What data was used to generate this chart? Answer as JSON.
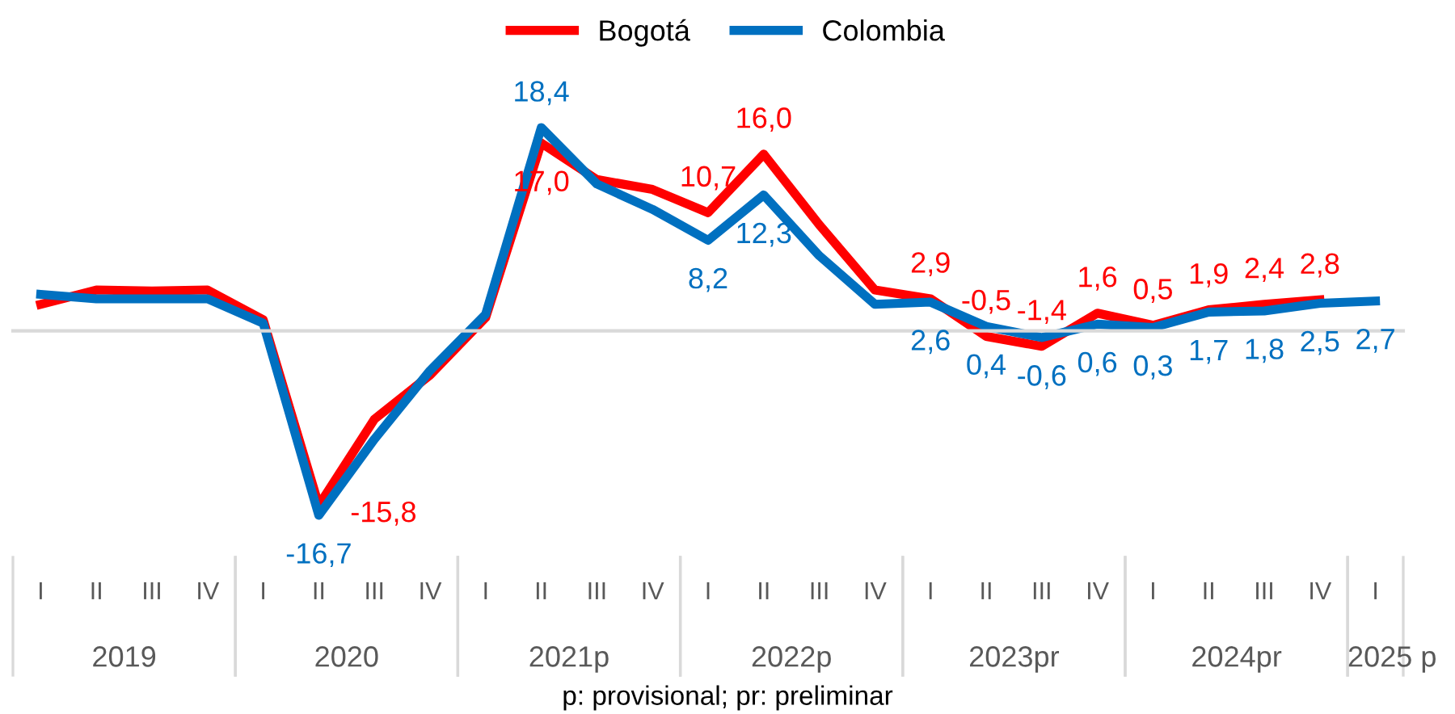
{
  "chart_data": {
    "type": "line",
    "categories": [
      "I",
      "II",
      "III",
      "IV",
      "I",
      "II",
      "III",
      "IV",
      "I",
      "II",
      "III",
      "IV",
      "I",
      "II",
      "III",
      "IV",
      "I",
      "II",
      "III",
      "IV",
      "I",
      "II",
      "III",
      "IV",
      "I"
    ],
    "series": [
      {
        "name": "Bogotá",
        "color": "#ff0000",
        "values": [
          2.4,
          3.7,
          3.6,
          3.7,
          1.0,
          -15.8,
          -8.0,
          -4.0,
          1.2,
          17.0,
          13.7,
          12.8,
          10.7,
          16.0,
          9.6,
          3.7,
          2.9,
          -0.5,
          -1.4,
          1.6,
          0.5,
          1.9,
          2.4,
          2.8,
          null
        ],
        "value_labels": [
          null,
          null,
          null,
          null,
          null,
          "-15,8",
          null,
          null,
          null,
          "17,0",
          null,
          null,
          "10,7",
          "16,0",
          null,
          null,
          "2,9",
          "-0,5",
          "-1,4",
          "1,6",
          "0,5",
          "1,9",
          "2,4",
          "2,8",
          null
        ]
      },
      {
        "name": "Colombia",
        "color": "#0070c0",
        "values": [
          3.3,
          2.9,
          2.9,
          2.9,
          0.7,
          -16.7,
          -9.8,
          -3.6,
          1.5,
          18.4,
          13.3,
          11.0,
          8.2,
          12.3,
          6.8,
          2.4,
          2.6,
          0.4,
          -0.6,
          0.6,
          0.3,
          1.7,
          1.8,
          2.5,
          2.7
        ],
        "value_labels": [
          null,
          null,
          null,
          null,
          null,
          "-16,7",
          null,
          null,
          null,
          "18,4",
          null,
          null,
          "8,2",
          "12,3",
          null,
          null,
          "2,6",
          "0,4",
          "-0,6",
          "0,6",
          "0,3",
          "1,7",
          "1,8",
          "2,5",
          "2,7"
        ]
      }
    ],
    "legend": "top",
    "annotations": [
      "2019",
      "2020",
      "2021p",
      "2022p",
      "2023pr",
      "2024pr",
      "2025 p",
      "p: provisional; pr: preliminar"
    ]
  }
}
